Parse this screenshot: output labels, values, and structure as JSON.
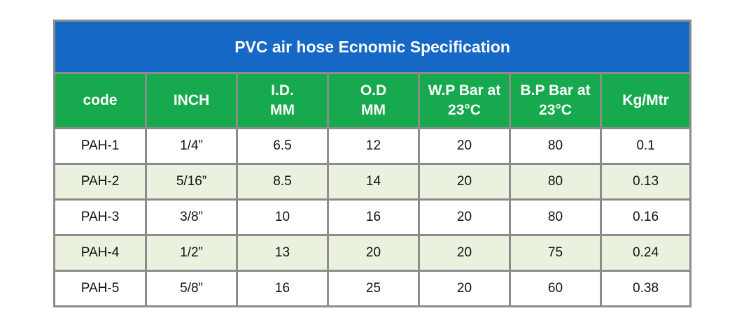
{
  "title": "PVC air hose Ecnomic Specification",
  "headers": [
    {
      "line1": "code",
      "line2": ""
    },
    {
      "line1": "INCH",
      "line2": ""
    },
    {
      "line1": "I.D.",
      "line2": "MM"
    },
    {
      "line1": "O.D",
      "line2": "MM"
    },
    {
      "line1": "W.P Bar at",
      "line2": "23°C"
    },
    {
      "line1": "B.P Bar at",
      "line2": "23°C"
    },
    {
      "line1": "Kg/Mtr",
      "line2": ""
    }
  ],
  "rows": [
    [
      "PAH-1",
      "1/4”",
      "6.5",
      "12",
      "20",
      "80",
      "0.1"
    ],
    [
      "PAH-2",
      "5/16”",
      "8.5",
      "14",
      "20",
      "80",
      "0.13"
    ],
    [
      "PAH-3",
      "3/8”",
      "10",
      "16",
      "20",
      "80",
      "0.16"
    ],
    [
      "PAH-4",
      "1/2”",
      "13",
      "20",
      "20",
      "75",
      "0.24"
    ],
    [
      "PAH-5",
      "5/8”",
      "16",
      "25",
      "20",
      "60",
      "0.38"
    ]
  ],
  "colors": {
    "title_bg": "#1668c6",
    "header_bg": "#17a94d",
    "border": "#8c8c8c",
    "alt_row_bg": "#eaf1de"
  }
}
